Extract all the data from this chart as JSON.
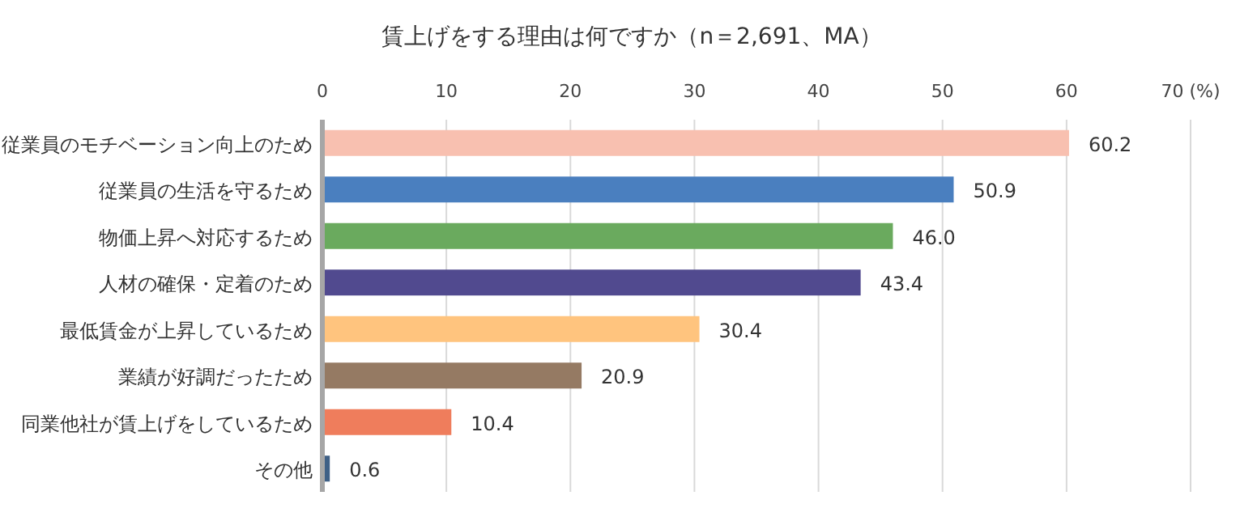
{
  "chart_data": {
    "type": "bar",
    "orientation": "horizontal",
    "title": "賃上げをする理由は何ですか（n＝2,691、MA）",
    "categories": [
      "従業員のモチベーション向上のため",
      "従業員の生活を守るため",
      "物価上昇へ対応するため",
      "人材の確保・定着のため",
      "最低賃金が上昇しているため",
      "業績が好調だったため",
      "同業他社が賃上げをしているため",
      "その他"
    ],
    "values": [
      60.2,
      50.9,
      46.0,
      43.4,
      30.4,
      20.9,
      10.4,
      0.6
    ],
    "value_labels": [
      "60.2",
      "50.9",
      "46.0",
      "43.4",
      "30.4",
      "20.9",
      "10.4",
      "0.6"
    ],
    "colors": [
      "#f8c0b0",
      "#4a7fbf",
      "#6aaa5e",
      "#514a8f",
      "#ffc47e",
      "#957a63",
      "#ef7d5c",
      "#3f6086"
    ],
    "xlim": [
      0,
      70
    ],
    "xticks": [
      0,
      10,
      20,
      30,
      40,
      50,
      60,
      {
        "value": 70,
        "label": "70 (%)"
      }
    ],
    "grid": "x"
  }
}
